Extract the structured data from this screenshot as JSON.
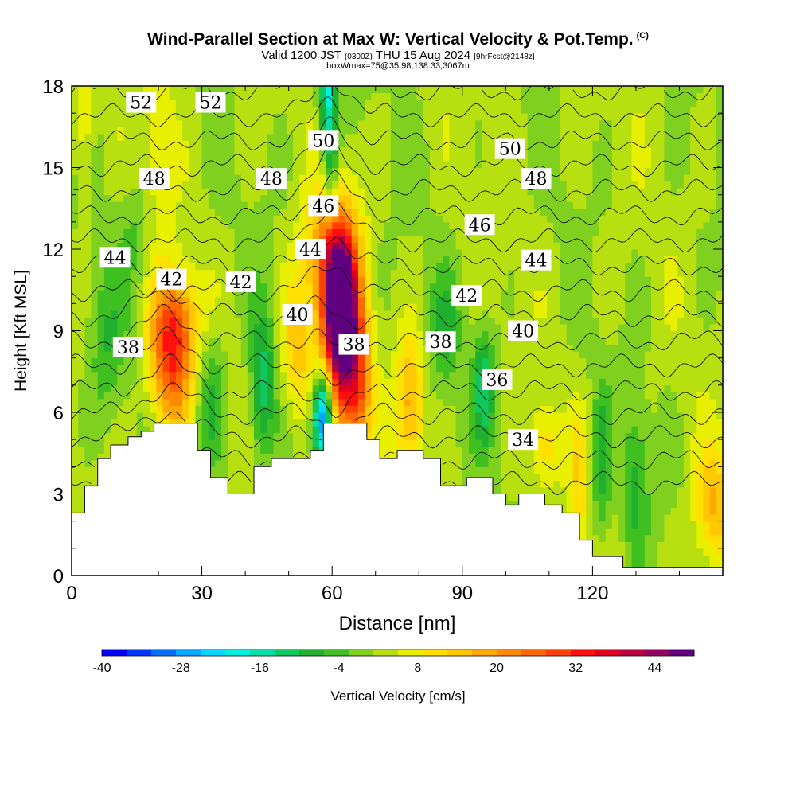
{
  "header": {
    "title": "Wind-Parallel Section at Max W: Vertical Velocity & Pot.Temp.",
    "copyright": "(C)",
    "valid_prefix": "Valid 1200 JST",
    "valid_zulu": "(0300Z)",
    "valid_date": "THU 15 Aug 2024",
    "forecast": "[9hrFcst@2148z]",
    "box_info": "boxWmax=75@35.98,138.33,3067m"
  },
  "chart_data": {
    "type": "heatmap",
    "xlabel": "Distance [nm]",
    "ylabel": "Height [Kft MSL]",
    "xlim": [
      0,
      150
    ],
    "ylim": [
      0,
      18
    ],
    "x_ticks": [
      "0",
      "30",
      "60",
      "90",
      "120"
    ],
    "y_ticks": [
      "0",
      "3",
      "6",
      "9",
      "12",
      "15",
      "18"
    ],
    "colorbar": {
      "label": "Vertical Velocity [cm/s]",
      "tick_labels": [
        "-40",
        "-28",
        "-16",
        "-4",
        "8",
        "20",
        "32",
        "44"
      ],
      "range": [
        -40,
        50
      ],
      "colors": [
        "#0000ff",
        "#0038ff",
        "#0070ff",
        "#00a8ff",
        "#00d8ff",
        "#00f0e0",
        "#00e0a8",
        "#10c860",
        "#20b030",
        "#40c020",
        "#80d020",
        "#b8e010",
        "#e8f000",
        "#ffe000",
        "#ffc800",
        "#ffa800",
        "#ff8800",
        "#ff6800",
        "#ff4000",
        "#ff1010",
        "#e00020",
        "#b80040",
        "#900060",
        "#600080"
      ]
    },
    "terrain_profile": [
      [
        0,
        2.3
      ],
      [
        3,
        2.3
      ],
      [
        3,
        3.3
      ],
      [
        6,
        3.3
      ],
      [
        6,
        4.3
      ],
      [
        9,
        4.3
      ],
      [
        9,
        4.8
      ],
      [
        13,
        4.8
      ],
      [
        13,
        5.1
      ],
      [
        16,
        5.1
      ],
      [
        16,
        5.3
      ],
      [
        19,
        5.3
      ],
      [
        19,
        5.6
      ],
      [
        29,
        5.6
      ],
      [
        29,
        4.6
      ],
      [
        32,
        4.6
      ],
      [
        32,
        3.6
      ],
      [
        36,
        3.6
      ],
      [
        36,
        3.0
      ],
      [
        42,
        3.0
      ],
      [
        42,
        4.0
      ],
      [
        46,
        4.0
      ],
      [
        46,
        4.3
      ],
      [
        55,
        4.3
      ],
      [
        55,
        4.6
      ],
      [
        58,
        4.6
      ],
      [
        58,
        5.6
      ],
      [
        68,
        5.6
      ],
      [
        68,
        5.0
      ],
      [
        71,
        5.0
      ],
      [
        71,
        4.3
      ],
      [
        75,
        4.3
      ],
      [
        75,
        4.6
      ],
      [
        81,
        4.6
      ],
      [
        81,
        4.3
      ],
      [
        85,
        4.3
      ],
      [
        85,
        3.3
      ],
      [
        91,
        3.3
      ],
      [
        91,
        3.6
      ],
      [
        97,
        3.6
      ],
      [
        97,
        3.0
      ],
      [
        100,
        3.0
      ],
      [
        100,
        2.6
      ],
      [
        103,
        2.6
      ],
      [
        103,
        3.0
      ],
      [
        109,
        3.0
      ],
      [
        109,
        2.6
      ],
      [
        113,
        2.6
      ],
      [
        113,
        2.3
      ],
      [
        117,
        2.3
      ],
      [
        117,
        1.3
      ],
      [
        120,
        1.3
      ],
      [
        120,
        0.7
      ],
      [
        127,
        0.7
      ],
      [
        127,
        0.3
      ],
      [
        150,
        0.3
      ]
    ],
    "contour_labels": [
      {
        "label": "52",
        "x": 16,
        "y": 17.4
      },
      {
        "label": "52",
        "x": 32,
        "y": 17.4
      },
      {
        "label": "50",
        "x": 58,
        "y": 16.0
      },
      {
        "label": "50",
        "x": 101,
        "y": 15.7
      },
      {
        "label": "48",
        "x": 19,
        "y": 14.6
      },
      {
        "label": "48",
        "x": 46,
        "y": 14.6
      },
      {
        "label": "48",
        "x": 107,
        "y": 14.6
      },
      {
        "label": "46",
        "x": 58,
        "y": 13.6
      },
      {
        "label": "46",
        "x": 94,
        "y": 12.9
      },
      {
        "label": "44",
        "x": 10,
        "y": 11.7
      },
      {
        "label": "44",
        "x": 55,
        "y": 12.0
      },
      {
        "label": "44",
        "x": 107,
        "y": 11.6
      },
      {
        "label": "42",
        "x": 23,
        "y": 10.9
      },
      {
        "label": "42",
        "x": 39,
        "y": 10.8
      },
      {
        "label": "42",
        "x": 91,
        "y": 10.3
      },
      {
        "label": "40",
        "x": 52,
        "y": 9.6
      },
      {
        "label": "40",
        "x": 104,
        "y": 9.0
      },
      {
        "label": "38",
        "x": 13,
        "y": 8.4
      },
      {
        "label": "38",
        "x": 65,
        "y": 8.5
      },
      {
        "label": "38",
        "x": 85,
        "y": 8.6
      },
      {
        "label": "36",
        "x": 98,
        "y": 7.2
      },
      {
        "label": "34",
        "x": 104,
        "y": 5.0
      }
    ],
    "isentrope_values": [
      34,
      35,
      36,
      37,
      38,
      39,
      40,
      41,
      42,
      43,
      44,
      45,
      46,
      47,
      48,
      49,
      50,
      51,
      52,
      53
    ],
    "grid": false
  }
}
